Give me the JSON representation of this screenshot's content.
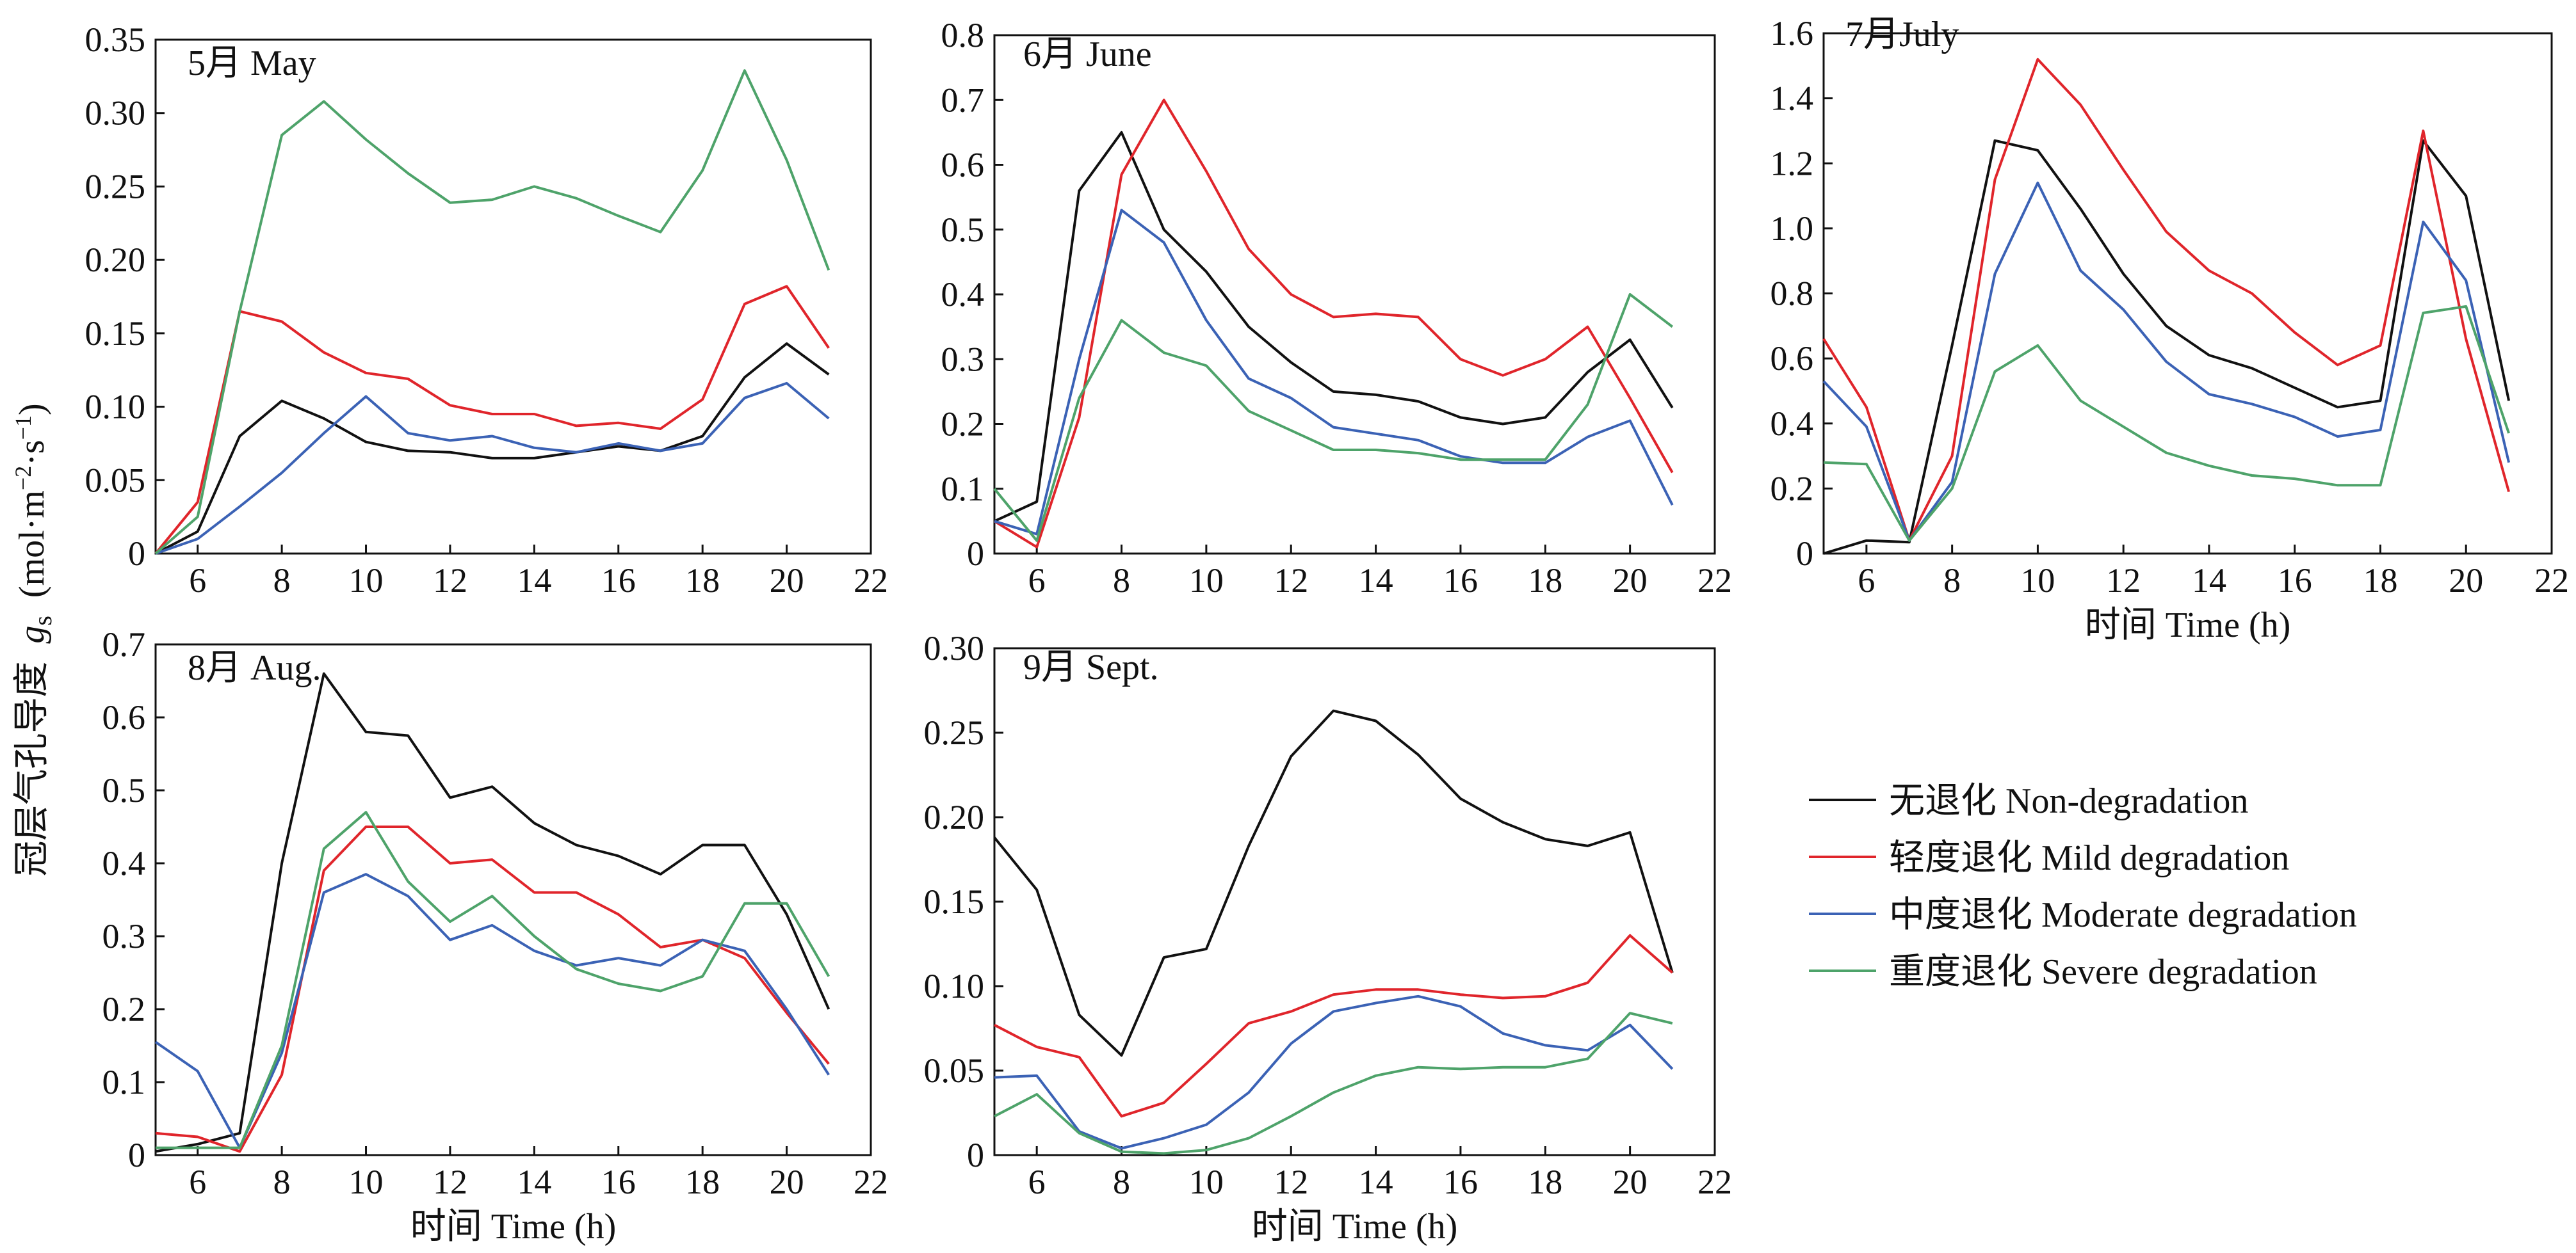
{
  "figure": {
    "ylabel_cn": "冠层气孔导度",
    "ylabel_symbol": "g",
    "ylabel_subscript": "s",
    "ylabel_unit": "(mol·m",
    "ylabel_unit_exp1": "−2",
    "ylabel_unit_mid": "·s",
    "ylabel_unit_exp2": "−1",
    "ylabel_unit_end": ")"
  },
  "legend": [
    {
      "label": "无退化 Non-degradation",
      "color": "#111111"
    },
    {
      "label": "轻度退化 Mild degradation",
      "color": "#e0252b"
    },
    {
      "label": "中度退化 Moderate degradation",
      "color": "#3b62b5"
    },
    {
      "label": "重度退化 Severe degradation",
      "color": "#4ea36a"
    }
  ],
  "chart_data": [
    {
      "type": "line",
      "title": "5月 May",
      "xlabel": "",
      "ylabel": "",
      "xlim": [
        5,
        22
      ],
      "ylim": [
        0,
        0.35
      ],
      "xticks": [
        6,
        8,
        10,
        12,
        14,
        16,
        18,
        20,
        22
      ],
      "yticks": [
        0,
        0.05,
        0.1,
        0.15,
        0.2,
        0.25,
        0.3,
        0.35
      ],
      "ytick_labels": [
        "0",
        "0.05",
        "0.10",
        "0.15",
        "0.20",
        "0.25",
        "0.30",
        "0.35"
      ],
      "x": [
        5,
        6,
        7,
        8,
        9,
        10,
        11,
        12,
        13,
        14,
        15,
        16,
        17,
        18,
        19,
        20,
        21
      ],
      "series": [
        {
          "name": "无退化 Non-degradation",
          "values": [
            0,
            0.015,
            0.08,
            0.104,
            0.092,
            0.076,
            0.07,
            0.069,
            0.065,
            0.065,
            0.069,
            0.073,
            0.07,
            0.08,
            0.12,
            0.143,
            0.122
          ]
        },
        {
          "name": "轻度退化 Mild degradation",
          "values": [
            0,
            0.035,
            0.165,
            0.158,
            0.137,
            0.123,
            0.119,
            0.101,
            0.095,
            0.095,
            0.087,
            0.089,
            0.085,
            0.105,
            0.17,
            0.182,
            0.14
          ]
        },
        {
          "name": "中度退化 Moderate degradation",
          "values": [
            0,
            0.01,
            0.032,
            0.055,
            0.082,
            0.107,
            0.082,
            0.077,
            0.08,
            0.072,
            0.069,
            0.075,
            0.07,
            0.075,
            0.106,
            0.116,
            0.092
          ]
        },
        {
          "name": "重度退化 Severe degradation",
          "values": [
            0,
            0.025,
            0.165,
            0.285,
            0.308,
            0.282,
            0.259,
            0.239,
            0.241,
            0.25,
            0.242,
            0.23,
            0.219,
            0.261,
            0.329,
            0.268,
            0.193
          ]
        }
      ]
    },
    {
      "type": "line",
      "title": "6月 June",
      "xlabel": "",
      "ylabel": "",
      "xlim": [
        5,
        22
      ],
      "ylim": [
        0,
        0.8
      ],
      "xticks": [
        6,
        8,
        10,
        12,
        14,
        16,
        18,
        20,
        22
      ],
      "yticks": [
        0,
        0.1,
        0.2,
        0.3,
        0.4,
        0.5,
        0.6,
        0.7,
        0.8
      ],
      "ytick_labels": [
        "0",
        "0.1",
        "0.2",
        "0.3",
        "0.4",
        "0.5",
        "0.6",
        "0.7",
        "0.8"
      ],
      "x": [
        5,
        6,
        7,
        8,
        9,
        10,
        11,
        12,
        13,
        14,
        15,
        16,
        17,
        18,
        19,
        20,
        21
      ],
      "series": [
        {
          "name": "无退化 Non-degradation",
          "values": [
            0.05,
            0.08,
            0.56,
            0.65,
            0.5,
            0.435,
            0.35,
            0.295,
            0.25,
            0.245,
            0.235,
            0.21,
            0.2,
            0.21,
            0.28,
            0.33,
            0.225
          ]
        },
        {
          "name": "轻度退化 Mild degradation",
          "values": [
            0.05,
            0.01,
            0.21,
            0.585,
            0.7,
            0.59,
            0.47,
            0.4,
            0.365,
            0.37,
            0.365,
            0.3,
            0.275,
            0.3,
            0.35,
            0.24,
            0.125
          ]
        },
        {
          "name": "中度退化 Moderate degradation",
          "values": [
            0.05,
            0.03,
            0.3,
            0.53,
            0.48,
            0.36,
            0.27,
            0.24,
            0.195,
            0.185,
            0.175,
            0.15,
            0.14,
            0.14,
            0.18,
            0.205,
            0.075
          ]
        },
        {
          "name": "重度退化 Severe degradation",
          "values": [
            0.1,
            0.02,
            0.24,
            0.36,
            0.31,
            0.29,
            0.22,
            0.19,
            0.16,
            0.16,
            0.155,
            0.145,
            0.145,
            0.145,
            0.23,
            0.4,
            0.35
          ]
        }
      ]
    },
    {
      "type": "line",
      "title": "7月July",
      "xlabel": "时间 Time (h)",
      "ylabel": "",
      "xlim": [
        5,
        22
      ],
      "ylim": [
        0,
        1.6
      ],
      "xticks": [
        6,
        8,
        10,
        12,
        14,
        16,
        18,
        20,
        22
      ],
      "yticks": [
        0,
        0.2,
        0.4,
        0.6,
        0.8,
        1.0,
        1.2,
        1.4,
        1.6
      ],
      "ytick_labels": [
        "0",
        "0.2",
        "0.4",
        "0.6",
        "0.8",
        "1.0",
        "1.2",
        "1.4",
        "1.6"
      ],
      "x": [
        5,
        6,
        7,
        8,
        9,
        10,
        11,
        12,
        13,
        14,
        15,
        16,
        17,
        18,
        19,
        20,
        21
      ],
      "series": [
        {
          "name": "无退化 Non-degradation",
          "values": [
            0,
            0.04,
            0.035,
            0.64,
            1.27,
            1.24,
            1.06,
            0.86,
            0.7,
            0.61,
            0.57,
            0.51,
            0.45,
            0.47,
            1.27,
            1.1,
            0.47
          ]
        },
        {
          "name": "轻度退化 Mild degradation",
          "values": [
            0.66,
            0.45,
            0.04,
            0.3,
            1.15,
            1.52,
            1.38,
            1.18,
            0.99,
            0.87,
            0.8,
            0.68,
            0.58,
            0.64,
            1.3,
            0.66,
            0.19
          ]
        },
        {
          "name": "中度退化 Moderate degradation",
          "values": [
            0.53,
            0.39,
            0.04,
            0.22,
            0.86,
            1.14,
            0.87,
            0.75,
            0.59,
            0.49,
            0.46,
            0.42,
            0.36,
            0.38,
            1.02,
            0.84,
            0.28
          ]
        },
        {
          "name": "重度退化 Severe degradation",
          "values": [
            0.28,
            0.275,
            0.04,
            0.2,
            0.56,
            0.64,
            0.47,
            0.39,
            0.31,
            0.27,
            0.24,
            0.23,
            0.21,
            0.21,
            0.74,
            0.76,
            0.37
          ]
        }
      ]
    },
    {
      "type": "line",
      "title": "8月 Aug.",
      "xlabel": "时间 Time (h)",
      "ylabel": "",
      "xlim": [
        5,
        22
      ],
      "ylim": [
        0,
        0.7
      ],
      "xticks": [
        6,
        8,
        10,
        12,
        14,
        16,
        18,
        20,
        22
      ],
      "yticks": [
        0,
        0.1,
        0.2,
        0.3,
        0.4,
        0.5,
        0.6,
        0.7
      ],
      "ytick_labels": [
        "0",
        "0.1",
        "0.2",
        "0.3",
        "0.4",
        "0.5",
        "0.6",
        "0.7"
      ],
      "x": [
        5,
        6,
        7,
        8,
        9,
        10,
        11,
        12,
        13,
        14,
        15,
        16,
        17,
        18,
        19,
        20,
        21
      ],
      "series": [
        {
          "name": "无退化 Non-degradation",
          "values": [
            0.005,
            0.015,
            0.03,
            0.4,
            0.66,
            0.58,
            0.575,
            0.49,
            0.505,
            0.455,
            0.425,
            0.41,
            0.385,
            0.425,
            0.425,
            0.33,
            0.2
          ]
        },
        {
          "name": "轻度退化 Mild degradation",
          "values": [
            0.03,
            0.025,
            0.005,
            0.11,
            0.39,
            0.45,
            0.45,
            0.4,
            0.405,
            0.36,
            0.36,
            0.33,
            0.285,
            0.295,
            0.27,
            0.195,
            0.125
          ]
        },
        {
          "name": "中度退化 Moderate degradation",
          "values": [
            0.155,
            0.115,
            0.01,
            0.14,
            0.36,
            0.385,
            0.355,
            0.295,
            0.315,
            0.28,
            0.26,
            0.27,
            0.26,
            0.295,
            0.28,
            0.2,
            0.11
          ]
        },
        {
          "name": "重度退化 Severe degradation",
          "values": [
            0.01,
            0.01,
            0.01,
            0.15,
            0.42,
            0.47,
            0.375,
            0.32,
            0.355,
            0.3,
            0.255,
            0.235,
            0.225,
            0.245,
            0.345,
            0.345,
            0.245
          ]
        }
      ]
    },
    {
      "type": "line",
      "title": "9月 Sept.",
      "xlabel": "时间 Time (h)",
      "ylabel": "",
      "xlim": [
        5,
        22
      ],
      "ylim": [
        0,
        0.3
      ],
      "xticks": [
        6,
        8,
        10,
        12,
        14,
        16,
        18,
        20,
        22
      ],
      "yticks": [
        0,
        0.05,
        0.1,
        0.15,
        0.2,
        0.25,
        0.3
      ],
      "ytick_labels": [
        "0",
        "0.05",
        "0.10",
        "0.15",
        "0.20",
        "0.25",
        "0.30"
      ],
      "x": [
        5,
        6,
        7,
        8,
        9,
        10,
        11,
        12,
        13,
        14,
        15,
        16,
        17,
        18,
        19,
        20,
        21
      ],
      "series": [
        {
          "name": "无退化 Non-degradation",
          "values": [
            0.188,
            0.157,
            0.083,
            0.059,
            0.117,
            0.122,
            0.183,
            0.236,
            0.263,
            0.257,
            0.237,
            0.211,
            0.197,
            0.187,
            0.183,
            0.191,
            0.108
          ]
        },
        {
          "name": "轻度退化 Mild degradation",
          "values": [
            0.077,
            0.064,
            0.058,
            0.023,
            0.031,
            0.054,
            0.078,
            0.085,
            0.095,
            0.098,
            0.098,
            0.095,
            0.093,
            0.094,
            0.102,
            0.13,
            0.108
          ]
        },
        {
          "name": "中度退化 Moderate degradation",
          "values": [
            0.046,
            0.047,
            0.014,
            0.004,
            0.01,
            0.018,
            0.037,
            0.066,
            0.085,
            0.09,
            0.094,
            0.088,
            0.072,
            0.065,
            0.062,
            0.077,
            0.051
          ]
        },
        {
          "name": "重度退化 Severe degradation",
          "values": [
            0.023,
            0.036,
            0.013,
            0.002,
            0.001,
            0.003,
            0.01,
            0.023,
            0.037,
            0.047,
            0.052,
            0.051,
            0.052,
            0.052,
            0.057,
            0.084,
            0.078
          ]
        }
      ]
    }
  ]
}
